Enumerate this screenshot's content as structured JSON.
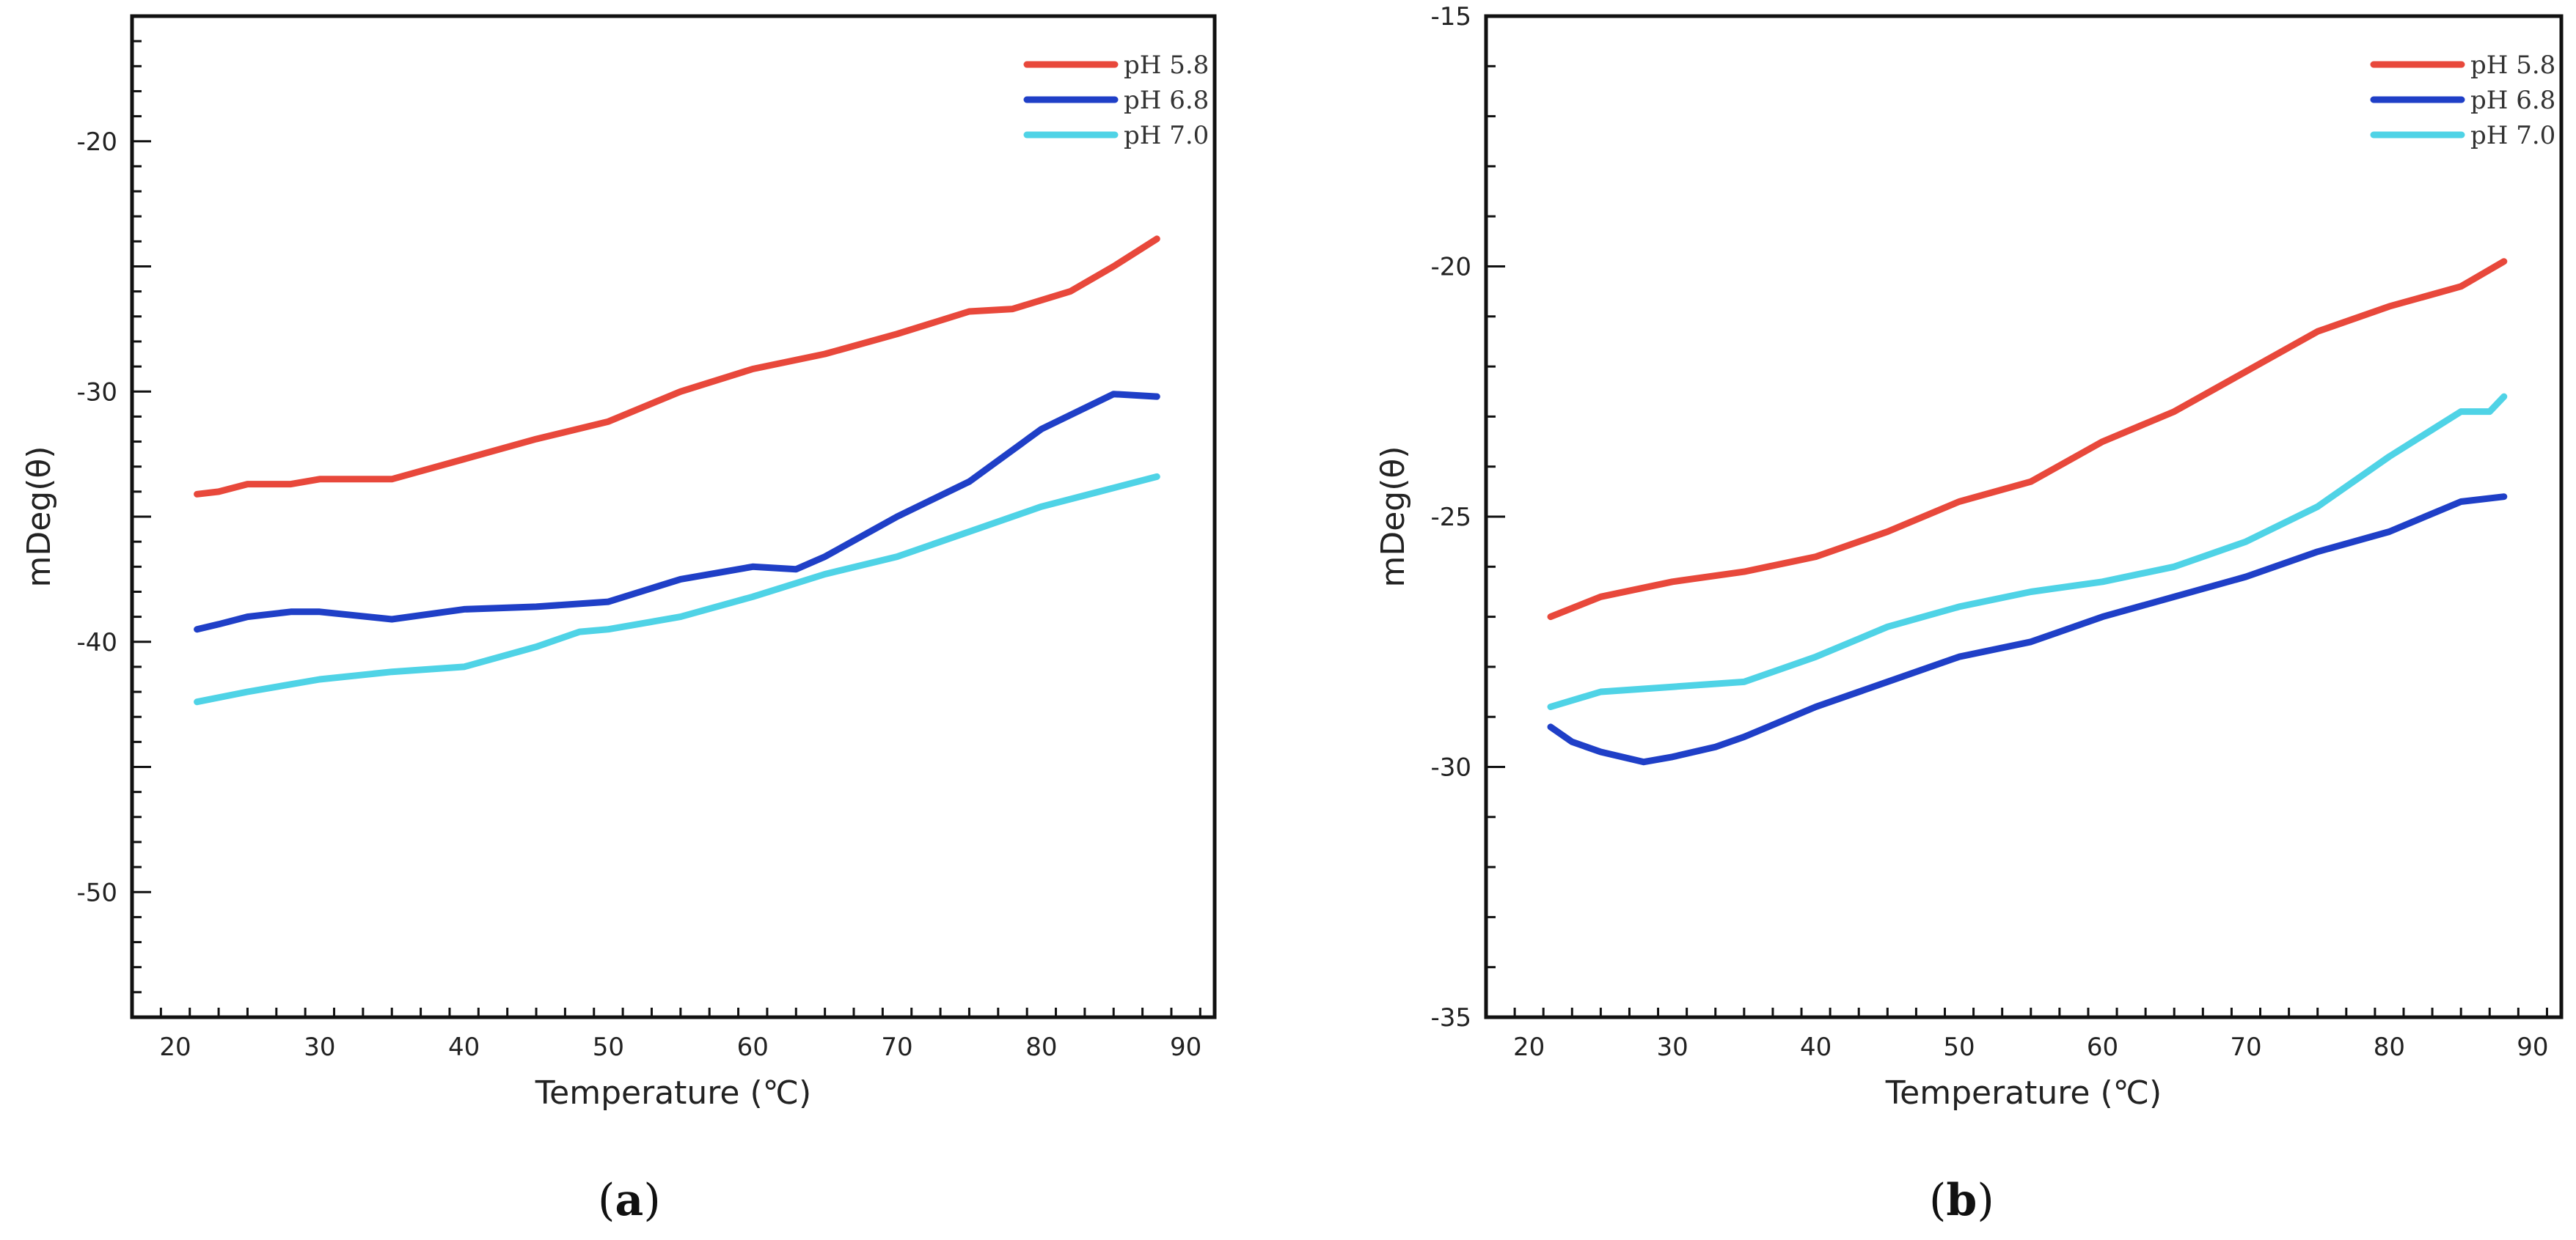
{
  "chart_data": [
    {
      "type": "line",
      "panel_label": "a",
      "xlabel": "Temperature (℃)",
      "ylabel": "mDeg(θ)",
      "xlim": [
        17,
        92
      ],
      "ylim": [
        -55,
        -15
      ],
      "xticks": [
        20,
        30,
        40,
        50,
        60,
        70,
        80,
        90
      ],
      "yticks": [
        -50,
        -40,
        -30,
        -20
      ],
      "legend_position": "top-right",
      "series": [
        {
          "name": "pH 5.8",
          "color": "#e8483b",
          "x": [
            21.5,
            23,
            25,
            28,
            30,
            35,
            40,
            45,
            50,
            55,
            60,
            65,
            70,
            75,
            78,
            82,
            85,
            88
          ],
          "y": [
            -34.1,
            -34.0,
            -33.7,
            -33.7,
            -33.5,
            -33.5,
            -32.7,
            -31.9,
            -31.2,
            -30.0,
            -29.1,
            -28.5,
            -27.7,
            -26.8,
            -26.7,
            -26.0,
            -25.0,
            -23.9
          ]
        },
        {
          "name": "pH 6.8",
          "color": "#1f3fc7",
          "x": [
            21.5,
            23,
            25,
            28,
            30,
            35,
            40,
            45,
            50,
            55,
            60,
            63,
            65,
            70,
            75,
            80,
            85,
            88
          ],
          "y": [
            -39.5,
            -39.3,
            -39.0,
            -38.8,
            -38.8,
            -39.1,
            -38.7,
            -38.6,
            -38.4,
            -37.5,
            -37.0,
            -37.1,
            -36.6,
            -35.0,
            -33.6,
            -31.5,
            -30.1,
            -30.2
          ]
        },
        {
          "name": "pH 7.0",
          "color": "#4fd3e6",
          "x": [
            21.5,
            25,
            30,
            35,
            40,
            45,
            48,
            50,
            55,
            60,
            65,
            70,
            75,
            80,
            84,
            88
          ],
          "y": [
            -42.4,
            -42.0,
            -41.5,
            -41.2,
            -41.0,
            -40.2,
            -39.6,
            -39.5,
            -39.0,
            -38.2,
            -37.3,
            -36.6,
            -35.6,
            -34.6,
            -34.0,
            -33.4
          ]
        }
      ]
    },
    {
      "type": "line",
      "panel_label": "b",
      "xlabel": "Temperature (℃)",
      "ylabel": "mDeg(θ)",
      "xlim": [
        17,
        92
      ],
      "ylim": [
        -35,
        -15
      ],
      "xticks": [
        20,
        30,
        40,
        50,
        60,
        70,
        80,
        90
      ],
      "yticks": [
        -35,
        -30,
        -25,
        -20,
        -15
      ],
      "legend_position": "top-right",
      "series": [
        {
          "name": "pH 5.8",
          "color": "#e8483b",
          "x": [
            21.5,
            25,
            30,
            35,
            40,
            45,
            50,
            55,
            60,
            65,
            70,
            75,
            80,
            85,
            88
          ],
          "y": [
            -27.0,
            -26.6,
            -26.3,
            -26.1,
            -25.8,
            -25.3,
            -24.7,
            -24.3,
            -23.5,
            -22.9,
            -22.1,
            -21.3,
            -20.8,
            -20.4,
            -19.9
          ]
        },
        {
          "name": "pH 6.8",
          "color": "#1f3fc7",
          "x": [
            21.5,
            23,
            25,
            28,
            30,
            33,
            35,
            40,
            45,
            50,
            55,
            60,
            65,
            70,
            75,
            80,
            85,
            88
          ],
          "y": [
            -29.2,
            -29.5,
            -29.7,
            -29.9,
            -29.8,
            -29.6,
            -29.4,
            -28.8,
            -28.3,
            -27.8,
            -27.5,
            -27.0,
            -26.6,
            -26.2,
            -25.7,
            -25.3,
            -24.7,
            -24.6
          ]
        },
        {
          "name": "pH 7.0",
          "color": "#4fd3e6",
          "x": [
            21.5,
            25,
            30,
            35,
            40,
            45,
            50,
            55,
            60,
            65,
            70,
            75,
            80,
            85,
            87,
            88
          ],
          "y": [
            -28.8,
            -28.5,
            -28.4,
            -28.3,
            -27.8,
            -27.2,
            -26.8,
            -26.5,
            -26.3,
            -26.0,
            -25.5,
            -24.8,
            -23.8,
            -22.9,
            -22.9,
            -22.6
          ]
        }
      ]
    }
  ]
}
